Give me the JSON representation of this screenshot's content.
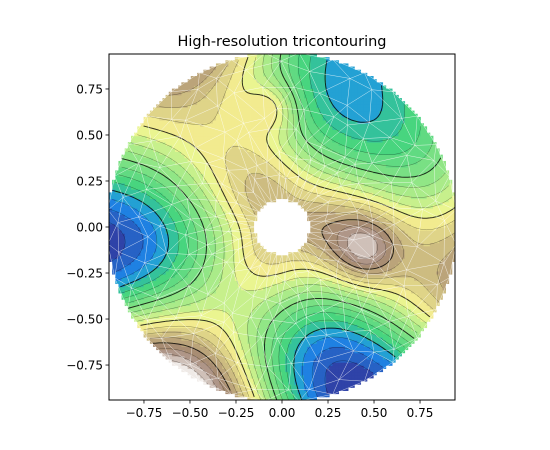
{
  "chart_data": {
    "type": "tricontour",
    "title": "High-resolution tricontouring",
    "xlabel": "",
    "ylabel": "",
    "xlim": [
      -0.94,
      0.94
    ],
    "ylim": [
      -0.94,
      0.94
    ],
    "x_ticks": [
      -0.75,
      -0.5,
      -0.25,
      0.0,
      0.25,
      0.5,
      0.75
    ],
    "x_tick_labels": [
      "−0.75",
      "−0.50",
      "−0.25",
      "0.00",
      "0.25",
      "0.50",
      "0.75"
    ],
    "y_ticks": [
      0.75,
      0.5,
      0.25,
      0.0,
      -0.25,
      -0.5,
      -0.75
    ],
    "y_tick_labels": [
      "0.75",
      "0.50",
      "0.25",
      "0.00",
      "−0.25",
      "−0.50",
      "−0.75"
    ],
    "domain": {
      "outer_radius": 0.95,
      "inner_radius": 0.15,
      "shape": "annulus"
    },
    "colormap": "terrain",
    "colormap_stops": [
      "#333399",
      "#1b91f0",
      "#3cd27e",
      "#b6ee8a",
      "#fbf792",
      "#9f8170",
      "#ffffff"
    ],
    "mesh_color": "#ffffff",
    "contour_color": "#000000",
    "grid": false,
    "legend": "none"
  }
}
